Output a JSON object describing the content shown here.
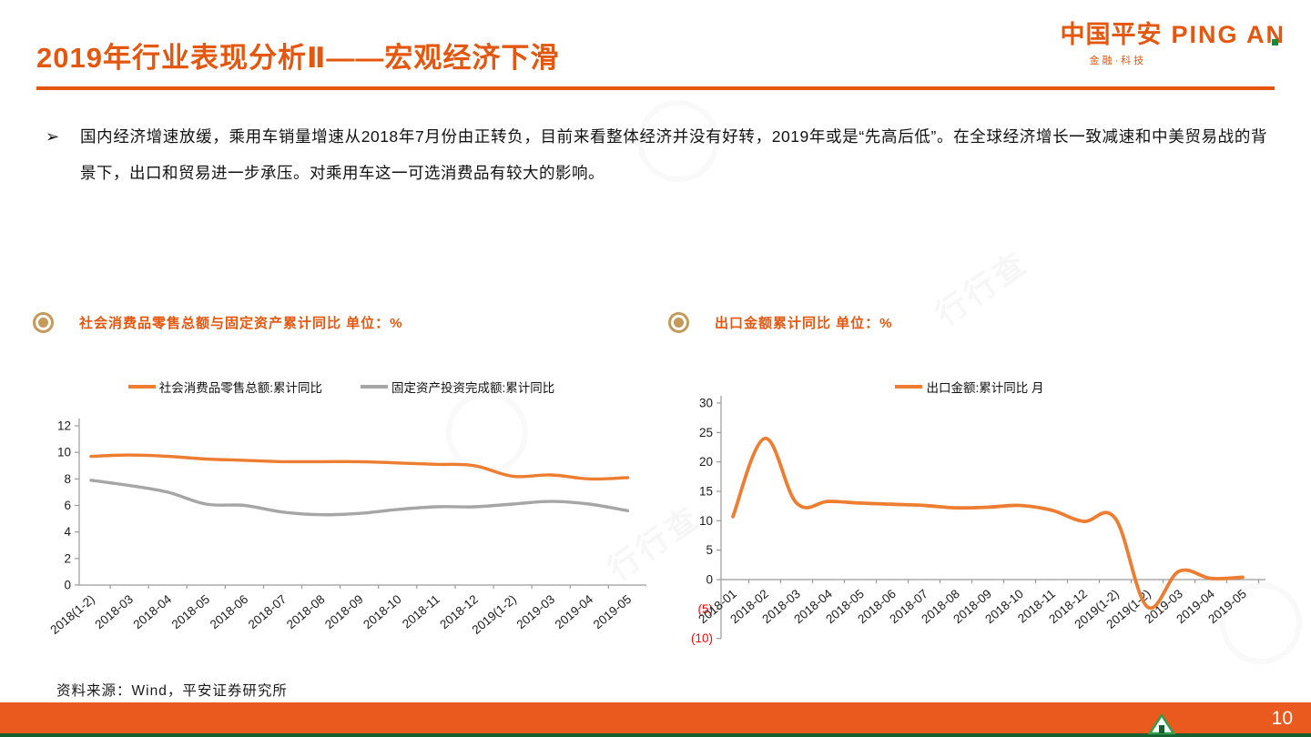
{
  "header": {
    "title": "2019年行业表现分析Ⅱ——宏观经济下滑"
  },
  "logo": {
    "cn": "中国平安",
    "en": "PING AN",
    "sub": "金融·科技"
  },
  "bullet": {
    "marker": "➢",
    "text": "国内经济增速放缓，乘用车销量增速从2018年7月份由正转负，目前来看整体经济并没有好转，2019年或是“先高后低”。在全球经济增长一致减速和中美贸易战的背景下，出口和贸易进一步承压。对乘用车这一可选消费品有较大的影响。"
  },
  "footer": {
    "source": "资料来源：Wind，平安证券研究所",
    "page": "10"
  },
  "watermark": {
    "text": "行行查"
  },
  "colors": {
    "accent_orange": "#E4570E",
    "bar_orange": "#EA5A1E",
    "line_orange": "#ED7D31",
    "line_gray": "#A6A6A6",
    "gold_bullet": "#C49A5B",
    "negative_tick_red": "#FF0000",
    "footer_green": "#16602F"
  },
  "chart_data": [
    {
      "type": "line",
      "title": "社会消费品零售总额与固定资产累计同比 单位：%",
      "categories": [
        "2018(1-2)",
        "2018-03",
        "2018-04",
        "2018-05",
        "2018-06",
        "2018-07",
        "2018-08",
        "2018-09",
        "2018-10",
        "2018-11",
        "2018-12",
        "2019(1-2)",
        "2019-03",
        "2019-04",
        "2019-05"
      ],
      "series": [
        {
          "name": "社会消费品零售总额:累计同比",
          "color": "#ED7D31",
          "values": [
            9.7,
            9.8,
            9.7,
            9.5,
            9.4,
            9.3,
            9.3,
            9.3,
            9.2,
            9.1,
            9.0,
            8.2,
            8.3,
            8.0,
            8.1
          ]
        },
        {
          "name": "固定资产投资完成额:累计同比",
          "color": "#A6A6A6",
          "values": [
            7.9,
            7.5,
            7.0,
            6.1,
            6.0,
            5.5,
            5.3,
            5.4,
            5.7,
            5.9,
            5.9,
            6.1,
            6.3,
            6.1,
            5.6
          ]
        }
      ],
      "ylim": [
        0,
        12
      ],
      "yticks": [
        0,
        2,
        4,
        6,
        8,
        10,
        12
      ],
      "grid": false,
      "legend_position": "top"
    },
    {
      "type": "line",
      "title": "出口金额累计同比 单位：%",
      "categories": [
        "2018-01",
        "2018-02",
        "2018-03",
        "2018-04",
        "2018-05",
        "2018-06",
        "2018-07",
        "2018-08",
        "2018-09",
        "2018-10",
        "2018-11",
        "2018-12",
        "2019(1-2)",
        "2019(1-2)",
        "2019-03",
        "2019-04",
        "2019-05"
      ],
      "series": [
        {
          "name": "出口金额:累计同比 月",
          "color": "#ED7D31",
          "values": [
            10.7,
            24.0,
            13.0,
            13.3,
            13.0,
            12.8,
            12.6,
            12.2,
            12.3,
            12.6,
            11.8,
            9.9,
            10.4,
            -4.6,
            1.4,
            0.2,
            0.4
          ]
        }
      ],
      "ylim": [
        -10,
        30
      ],
      "yticks": [
        30,
        25,
        20,
        15,
        10,
        5,
        0,
        -5,
        -10
      ],
      "negative_tick_format": "parentheses_red",
      "grid": false,
      "legend_position": "top"
    }
  ]
}
